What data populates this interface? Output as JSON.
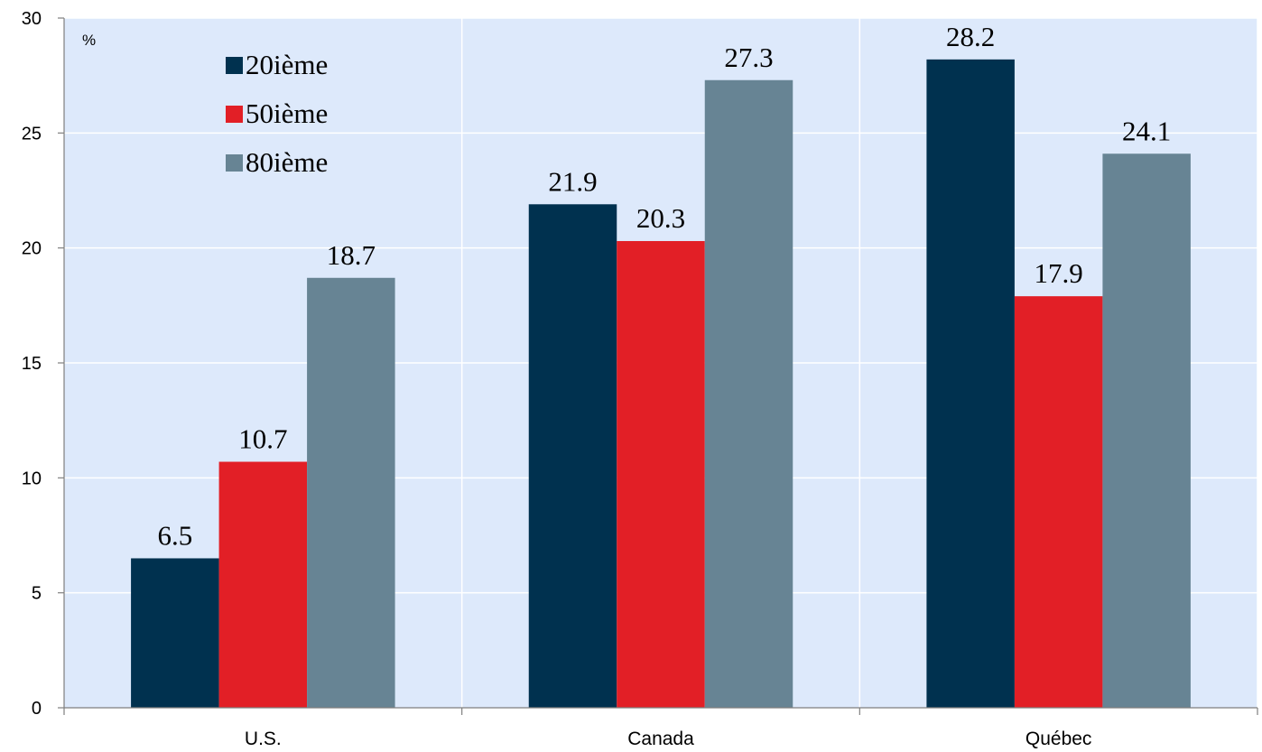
{
  "chart_data": {
    "type": "bar",
    "categories": [
      "U.S.",
      "Canada",
      "Québec"
    ],
    "series": [
      {
        "name": "20ième",
        "values": [
          6.5,
          21.9,
          28.2
        ],
        "color": "#00314f"
      },
      {
        "name": "50ième",
        "values": [
          10.7,
          20.3,
          17.9
        ],
        "color": "#e21f26"
      },
      {
        "name": "80ième",
        "values": [
          18.7,
          27.3,
          24.1
        ],
        "color": "#678494"
      }
    ],
    "unit_label": "%",
    "ylim": [
      0,
      30
    ],
    "yticks": [
      0,
      5,
      10,
      15,
      20,
      25,
      30
    ],
    "grid": true,
    "legend_position": "top-left",
    "data_labels": true,
    "plot_background": "#dde9fb",
    "grid_color": "#ffffff"
  }
}
